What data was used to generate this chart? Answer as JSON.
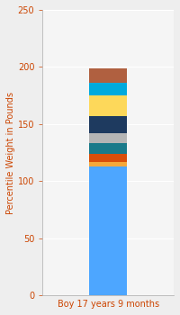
{
  "category": "Boy 17 years 9 months",
  "segments": [
    {
      "value": 113,
      "color": "#4da6ff"
    },
    {
      "value": 4,
      "color": "#f5a83a"
    },
    {
      "value": 7,
      "color": "#d94e0a"
    },
    {
      "value": 9,
      "color": "#1a7a8a"
    },
    {
      "value": 9,
      "color": "#b5b5b5"
    },
    {
      "value": 15,
      "color": "#1e3a5f"
    },
    {
      "value": 18,
      "color": "#fdd85a"
    },
    {
      "value": 11,
      "color": "#00aadd"
    },
    {
      "value": 13,
      "color": "#b06040"
    }
  ],
  "ylabel": "Percentile Weight in Pounds",
  "ylim": [
    0,
    250
  ],
  "yticks": [
    0,
    50,
    100,
    150,
    200,
    250
  ],
  "background_color": "#eeeeee",
  "plot_bg_color": "#f5f5f5",
  "ylabel_color": "#cc4400",
  "xlabel_color": "#cc4400",
  "tick_color": "#cc4400",
  "grid_color": "#ffffff",
  "label_fontsize": 7,
  "tick_fontsize": 7,
  "bar_width": 0.35,
  "figsize": [
    2.0,
    3.5
  ],
  "dpi": 100
}
